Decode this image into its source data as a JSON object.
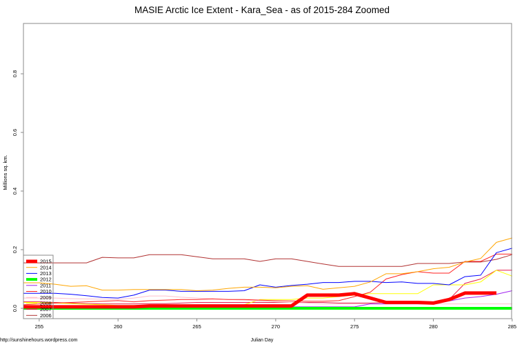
{
  "title": "MASIE Arctic Ice Extent - Kara_Sea - as of 2015-284 Zoomed",
  "source_url": "http://sunshinehours.wordpress.com",
  "chart_data": {
    "type": "line",
    "title": "MASIE Arctic Ice Extent - Kara_Sea - as of 2015-284 Zoomed",
    "xlabel": "Julian Day",
    "ylabel": "Millions sq. km.",
    "xlim": [
      254,
      285
    ],
    "ylim": [
      -0.035,
      0.97
    ],
    "x_ticks": [
      255,
      260,
      265,
      270,
      275,
      280,
      285
    ],
    "y_ticks": [
      0.0,
      0.2,
      0.4,
      0.6,
      0.8
    ],
    "y_tick_labels": [
      "0.0",
      "0.2",
      "0.4",
      "0.6",
      "0.8"
    ],
    "grid": false,
    "legend_position": "bottom-left",
    "x": [
      254,
      255,
      256,
      257,
      258,
      259,
      260,
      261,
      262,
      263,
      264,
      265,
      266,
      267,
      268,
      269,
      270,
      271,
      272,
      273,
      274,
      275,
      276,
      277,
      278,
      279,
      280,
      281,
      282,
      283,
      284,
      285
    ],
    "series": [
      {
        "name": "2015",
        "color": "#ff0000",
        "width": 5,
        "values": [
          0.005,
          0.005,
          0.005,
          0.005,
          0.005,
          0.005,
          0.005,
          0.005,
          0.008,
          0.008,
          0.008,
          0.008,
          0.008,
          0.008,
          0.008,
          0.008,
          0.008,
          0.008,
          0.045,
          0.045,
          0.045,
          0.05,
          0.035,
          0.02,
          0.02,
          0.02,
          0.018,
          0.03,
          0.052,
          0.052,
          0.052,
          null
        ]
      },
      {
        "name": "2014",
        "color": "#ffa500",
        "width": 1,
        "values": [
          0.087,
          0.087,
          0.082,
          0.075,
          0.077,
          0.062,
          0.062,
          0.064,
          0.064,
          0.064,
          0.064,
          0.06,
          0.062,
          0.068,
          0.072,
          0.072,
          0.07,
          0.075,
          0.077,
          0.065,
          0.07,
          0.075,
          0.09,
          0.118,
          0.118,
          0.125,
          0.135,
          0.14,
          0.158,
          0.17,
          0.225,
          0.24
        ]
      },
      {
        "name": "2013",
        "color": "#0000ff",
        "width": 1,
        "values": [
          0.051,
          0.051,
          0.051,
          0.048,
          0.043,
          0.037,
          0.035,
          0.045,
          0.062,
          0.062,
          0.058,
          0.058,
          0.058,
          0.058,
          0.06,
          0.08,
          0.072,
          0.078,
          0.082,
          0.088,
          0.088,
          0.092,
          0.092,
          0.088,
          0.09,
          0.085,
          0.085,
          0.08,
          0.108,
          0.113,
          0.19,
          0.205
        ]
      },
      {
        "name": "2012",
        "color": "#00ff00",
        "width": 4,
        "values": [
          0.0,
          0.0,
          0.0,
          0.0,
          0.0,
          0.0,
          0.0,
          0.0,
          0.0,
          0.0,
          0.0,
          0.0,
          0.0,
          0.0,
          0.0,
          0.0,
          0.0,
          0.0,
          0.0,
          0.0,
          0.0,
          0.0,
          0.0,
          0.0,
          0.0,
          0.0,
          0.0,
          0.0,
          0.0,
          0.0,
          0.0,
          0.0
        ]
      },
      {
        "name": "2011",
        "color": "#a020f0",
        "width": 1,
        "values": [
          0.01,
          0.008,
          0.007,
          0.006,
          0.005,
          0.005,
          0.005,
          0.005,
          0.005,
          0.005,
          0.005,
          0.005,
          0.005,
          0.005,
          0.005,
          0.005,
          0.005,
          0.005,
          0.005,
          0.005,
          0.005,
          0.005,
          0.015,
          0.015,
          0.015,
          0.015,
          0.015,
          0.025,
          0.035,
          0.04,
          0.048,
          0.06
        ]
      },
      {
        "name": "2010",
        "color": "#ff2020",
        "width": 1,
        "values": [
          0.012,
          0.015,
          0.018,
          0.02,
          0.022,
          0.024,
          0.026,
          0.022,
          0.026,
          0.028,
          0.03,
          0.03,
          0.032,
          0.03,
          0.03,
          0.028,
          0.026,
          0.025,
          0.024,
          0.024,
          0.026,
          0.04,
          0.055,
          0.1,
          0.115,
          0.125,
          0.12,
          0.12,
          0.16,
          0.16,
          0.185,
          0.185
        ]
      },
      {
        "name": "2009",
        "color": "#ffc0cb",
        "width": 1,
        "values": [
          0.035,
          0.035,
          0.035,
          0.033,
          0.032,
          0.031,
          0.03,
          0.035,
          0.042,
          0.042,
          0.038,
          0.035,
          0.032,
          0.03,
          0.028,
          0.025,
          0.022,
          0.02,
          0.018,
          0.015,
          0.015,
          0.015,
          0.015,
          0.015,
          0.015,
          0.015,
          0.015,
          0.015,
          0.015,
          0.015,
          0.015,
          0.015
        ]
      },
      {
        "name": "2008",
        "color": "#ffff00",
        "width": 1,
        "values": [
          0.02,
          0.02,
          0.018,
          0.016,
          0.014,
          0.012,
          0.01,
          0.01,
          0.01,
          0.01,
          0.01,
          0.01,
          0.01,
          0.01,
          0.012,
          0.03,
          0.03,
          0.03,
          0.035,
          0.035,
          0.04,
          0.045,
          0.05,
          0.05,
          0.05,
          0.05,
          0.08,
          0.08,
          0.08,
          0.09,
          0.13,
          0.11
        ]
      },
      {
        "name": "2007",
        "color": "#e6194b",
        "width": 1,
        "values": [
          0.022,
          0.022,
          0.02,
          0.018,
          0.016,
          0.015,
          0.015,
          0.015,
          0.016,
          0.016,
          0.018,
          0.02,
          0.02,
          0.02,
          0.02,
          0.02,
          0.02,
          0.02,
          0.02,
          0.02,
          0.018,
          0.018,
          0.018,
          0.02,
          0.02,
          0.02,
          0.02,
          0.03,
          0.085,
          0.1,
          0.13,
          0.13
        ]
      },
      {
        "name": "2006",
        "color": "#b03030",
        "width": 1,
        "values": [
          0.155,
          0.155,
          0.155,
          0.155,
          0.155,
          0.174,
          0.172,
          0.172,
          0.183,
          0.183,
          0.183,
          0.176,
          0.169,
          0.169,
          0.169,
          0.16,
          0.169,
          0.169,
          0.16,
          0.151,
          0.143,
          0.143,
          0.143,
          0.143,
          0.143,
          0.153,
          0.153,
          0.153,
          0.158,
          0.158,
          0.167,
          0.183
        ]
      }
    ],
    "legend": [
      "2015",
      "2014",
      "2013",
      "2012",
      "2011",
      "2010",
      "2009",
      "2008",
      "2007",
      "2006"
    ]
  }
}
